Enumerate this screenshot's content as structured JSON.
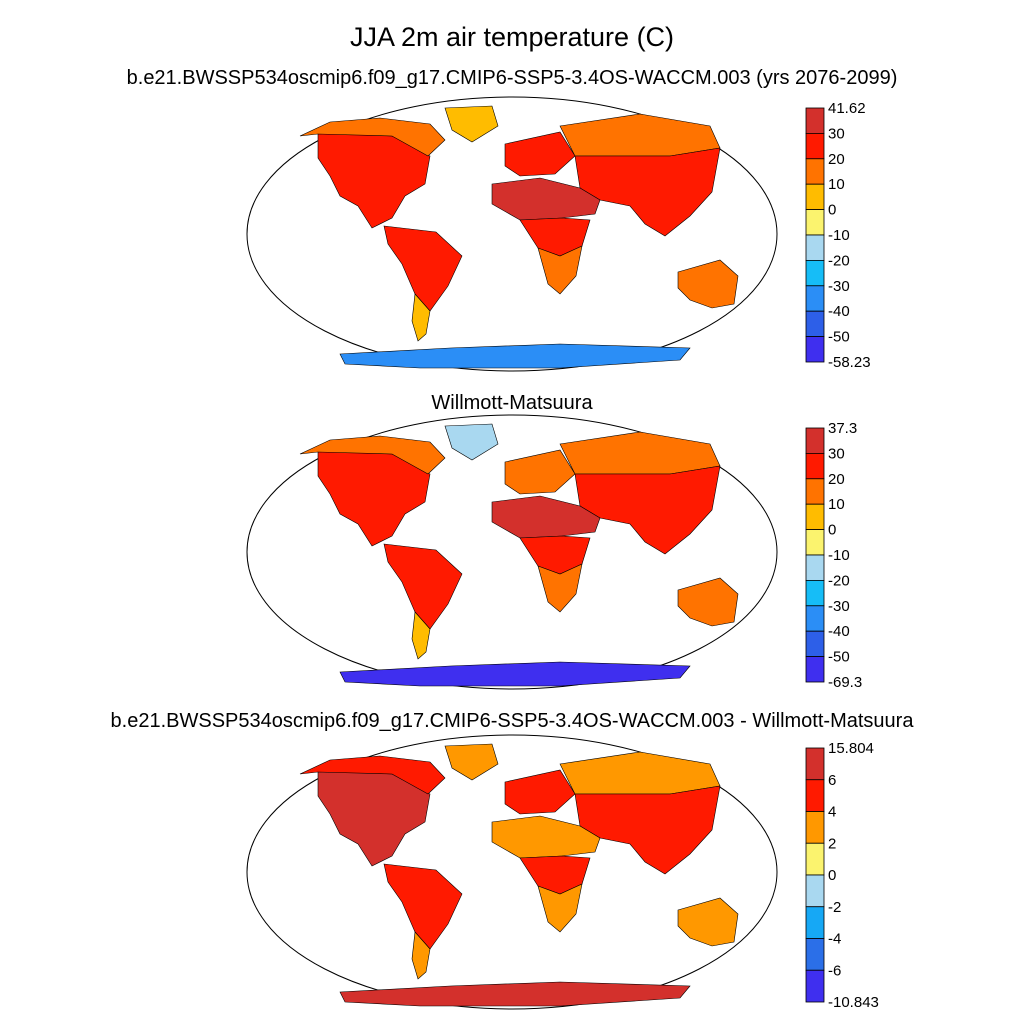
{
  "page_title": "JJA 2m air temperature (C)",
  "chart_data": [
    {
      "type": "heatmap",
      "title": "b.e21.BWSSP534oscmip6.f09_g17.CMIP6-SSP5-3.4OS-WACCM.003 (yrs 2076-2099)",
      "projection": "Robinson",
      "colorbar": {
        "labels": [
          "41.62",
          "30",
          "20",
          "10",
          "0",
          "-10",
          "-20",
          "-30",
          "-40",
          "-50",
          "-58.23"
        ],
        "colors": [
          "#d3302c",
          "#ff1a00",
          "#ff7300",
          "#ffbc00",
          "#fbf36e",
          "#a9d8f0",
          "#16bdf7",
          "#2b8ef6",
          "#2d5fe8",
          "#3f2fef"
        ]
      },
      "regions": [
        {
          "name": "North America",
          "value": 24
        },
        {
          "name": "Canada / Alaska",
          "value": 16
        },
        {
          "name": "Greenland",
          "value": 3
        },
        {
          "name": "South America",
          "value": 28
        },
        {
          "name": "Patagonia",
          "value": 8
        },
        {
          "name": "Europe",
          "value": 22
        },
        {
          "name": "Siberia",
          "value": 14
        },
        {
          "name": "Asia",
          "value": 28
        },
        {
          "name": "Sahara / Middle East",
          "value": 36
        },
        {
          "name": "Central Africa",
          "value": 27
        },
        {
          "name": "Southern Africa",
          "value": 18
        },
        {
          "name": "Australia",
          "value": 13
        },
        {
          "name": "Antarctica",
          "value": -40
        }
      ]
    },
    {
      "type": "heatmap",
      "title": "Willmott-Matsuura",
      "projection": "Robinson",
      "colorbar": {
        "labels": [
          "37.3",
          "30",
          "20",
          "10",
          "0",
          "-10",
          "-20",
          "-30",
          "-40",
          "-50",
          "-69.3"
        ],
        "colors": [
          "#d3302c",
          "#ff1a00",
          "#ff7300",
          "#ffbc00",
          "#fbf36e",
          "#a9d8f0",
          "#16bdf7",
          "#2b8ef6",
          "#2d5fe8",
          "#3f2fef"
        ]
      },
      "regions": [
        {
          "name": "North America",
          "value": 22
        },
        {
          "name": "Canada / Alaska",
          "value": 13
        },
        {
          "name": "Greenland",
          "value": -12
        },
        {
          "name": "South America",
          "value": 25
        },
        {
          "name": "Patagonia",
          "value": 5
        },
        {
          "name": "Europe",
          "value": 19
        },
        {
          "name": "Siberia",
          "value": 12
        },
        {
          "name": "Asia",
          "value": 24
        },
        {
          "name": "Sahara / Middle East",
          "value": 33
        },
        {
          "name": "Central Africa",
          "value": 25
        },
        {
          "name": "Southern Africa",
          "value": 16
        },
        {
          "name": "Australia",
          "value": 11
        },
        {
          "name": "Antarctica",
          "value": -55
        }
      ]
    },
    {
      "type": "heatmap",
      "title": "b.e21.BWSSP534oscmip6.f09_g17.CMIP6-SSP5-3.4OS-WACCM.003 - Willmott-Matsuura",
      "projection": "Robinson",
      "colorbar": {
        "labels": [
          "15.804",
          "6",
          "4",
          "2",
          "0",
          "-2",
          "-4",
          "-6",
          "-10.843"
        ],
        "colors": [
          "#d3302c",
          "#ff1a00",
          "#ff9800",
          "#fbf36e",
          "#a9d8f0",
          "#16a8f5",
          "#2b6fe8",
          "#3f2fef"
        ]
      },
      "regions": [
        {
          "name": "North America",
          "value": 6
        },
        {
          "name": "Canada / Alaska",
          "value": 5
        },
        {
          "name": "Greenland",
          "value": 3
        },
        {
          "name": "South America",
          "value": 4
        },
        {
          "name": "Patagonia",
          "value": 3
        },
        {
          "name": "Europe",
          "value": 5
        },
        {
          "name": "Siberia",
          "value": 3
        },
        {
          "name": "Asia",
          "value": 5
        },
        {
          "name": "Sahara / Middle East",
          "value": 3
        },
        {
          "name": "Central Africa",
          "value": 4
        },
        {
          "name": "Southern Africa",
          "value": 3
        },
        {
          "name": "Australia",
          "value": 3
        },
        {
          "name": "Antarctica",
          "value": 6
        }
      ]
    }
  ]
}
